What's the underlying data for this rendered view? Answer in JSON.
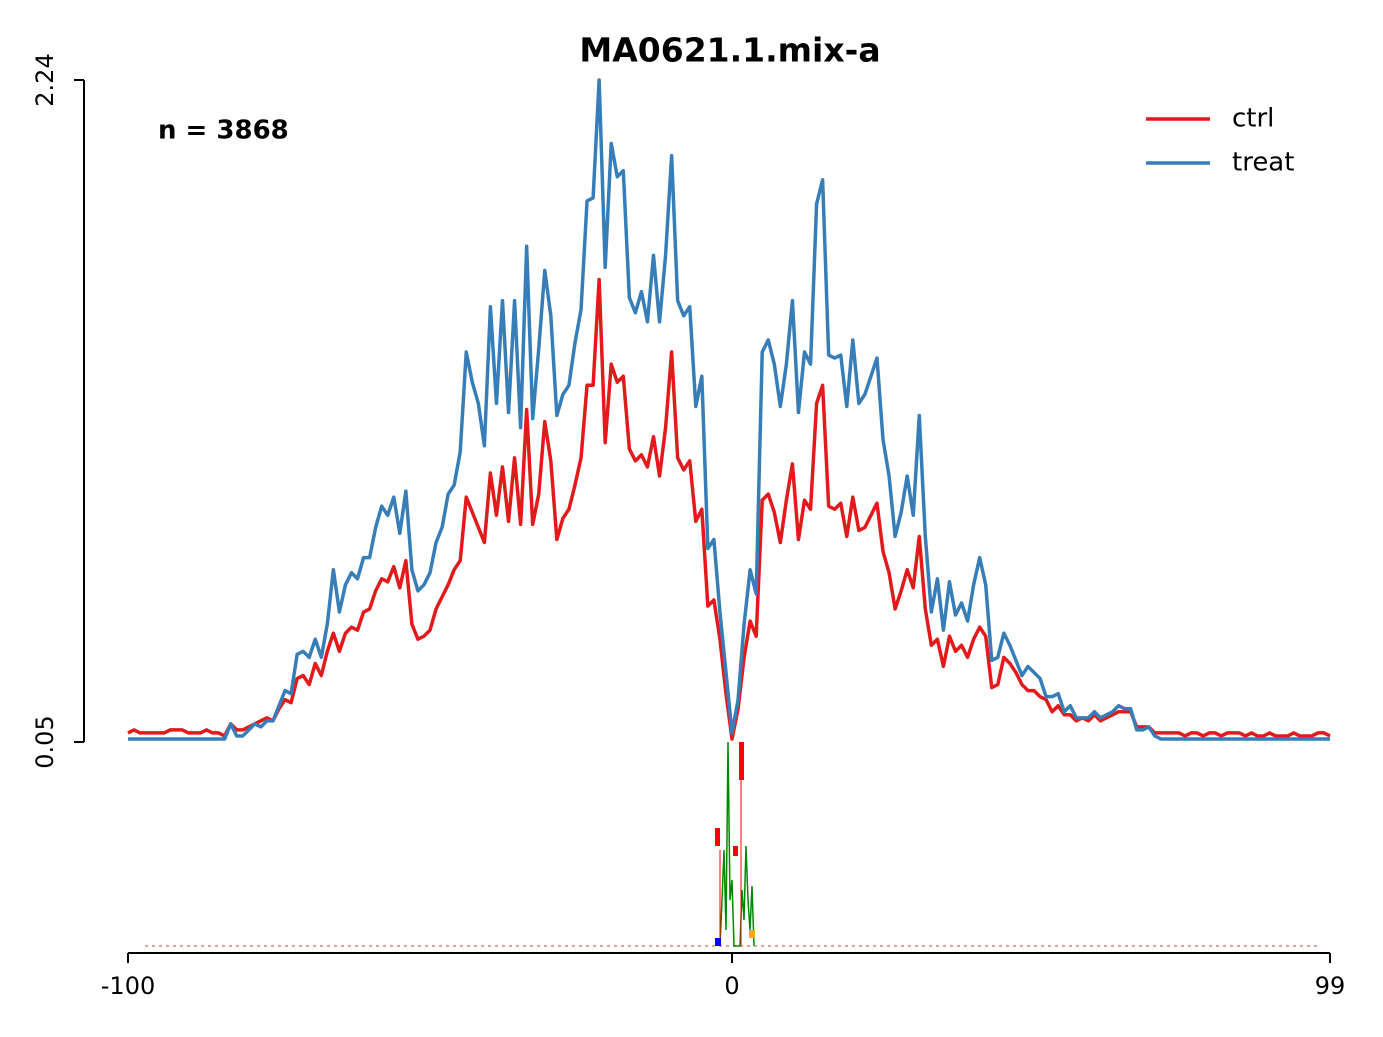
{
  "chart_data": {
    "type": "line",
    "title": "MA0621.1.mix-a",
    "annotation": "n = 3868",
    "x": [
      -100,
      -99,
      -98,
      -97,
      -96,
      -95,
      -94,
      -93,
      -92,
      -91,
      -90,
      -89,
      -88,
      -87,
      -86,
      -85,
      -84,
      -83,
      -82,
      -81,
      -80,
      -79,
      -78,
      -77,
      -76,
      -75,
      -74,
      -73,
      -72,
      -71,
      -70,
      -69,
      -68,
      -67,
      -66,
      -65,
      -64,
      -63,
      -62,
      -61,
      -60,
      -59,
      -58,
      -57,
      -56,
      -55,
      -54,
      -53,
      -52,
      -51,
      -50,
      -49,
      -48,
      -47,
      -46,
      -45,
      -44,
      -43,
      -42,
      -41,
      -40,
      -39,
      -38,
      -37,
      -36,
      -35,
      -34,
      -33,
      -32,
      -31,
      -30,
      -29,
      -28,
      -27,
      -26,
      -25,
      -24,
      -23,
      -22,
      -21,
      -20,
      -19,
      -18,
      -17,
      -16,
      -15,
      -14,
      -13,
      -12,
      -11,
      -10,
      -9,
      -8,
      -7,
      -6,
      -5,
      -4,
      -3,
      -2,
      -1,
      0,
      1,
      2,
      3,
      4,
      5,
      6,
      7,
      8,
      9,
      10,
      11,
      12,
      13,
      14,
      15,
      16,
      17,
      18,
      19,
      20,
      21,
      22,
      23,
      24,
      25,
      26,
      27,
      28,
      29,
      30,
      31,
      32,
      33,
      34,
      35,
      36,
      37,
      38,
      39,
      40,
      41,
      42,
      43,
      44,
      45,
      46,
      47,
      48,
      49,
      50,
      51,
      52,
      53,
      54,
      55,
      56,
      57,
      58,
      59,
      60,
      61,
      62,
      63,
      64,
      65,
      66,
      67,
      68,
      69,
      70,
      71,
      72,
      73,
      74,
      75,
      76,
      77,
      78,
      79,
      80,
      81,
      82,
      83,
      84,
      85,
      86,
      87,
      88,
      89,
      90,
      91,
      92,
      93,
      94,
      95,
      96,
      97,
      98,
      99
    ],
    "series": [
      {
        "name": "ctrl",
        "color": "#e31a1c",
        "values": [
          0.08,
          0.09,
          0.08,
          0.08,
          0.08,
          0.08,
          0.08,
          0.09,
          0.09,
          0.09,
          0.08,
          0.08,
          0.08,
          0.09,
          0.08,
          0.08,
          0.07,
          0.11,
          0.09,
          0.09,
          0.1,
          0.11,
          0.12,
          0.13,
          0.12,
          0.16,
          0.19,
          0.18,
          0.26,
          0.27,
          0.24,
          0.31,
          0.27,
          0.35,
          0.41,
          0.35,
          0.41,
          0.43,
          0.42,
          0.48,
          0.49,
          0.55,
          0.59,
          0.58,
          0.63,
          0.56,
          0.65,
          0.44,
          0.39,
          0.4,
          0.42,
          0.49,
          0.53,
          0.57,
          0.62,
          0.65,
          0.86,
          0.81,
          0.76,
          0.71,
          0.94,
          0.8,
          0.96,
          0.78,
          0.99,
          0.77,
          1.15,
          0.77,
          0.87,
          1.11,
          0.98,
          0.72,
          0.79,
          0.82,
          0.9,
          0.99,
          1.23,
          1.23,
          1.58,
          1.04,
          1.3,
          1.24,
          1.26,
          1.02,
          0.98,
          1.0,
          0.96,
          1.06,
          0.93,
          1.09,
          1.34,
          0.99,
          0.95,
          0.98,
          0.78,
          0.82,
          0.5,
          0.52,
          0.39,
          0.21,
          0.06,
          0.16,
          0.33,
          0.45,
          0.4,
          0.85,
          0.87,
          0.81,
          0.71,
          0.85,
          0.97,
          0.72,
          0.85,
          0.82,
          1.17,
          1.23,
          0.83,
          0.82,
          0.84,
          0.73,
          0.86,
          0.75,
          0.76,
          0.8,
          0.84,
          0.68,
          0.61,
          0.49,
          0.55,
          0.62,
          0.56,
          0.73,
          0.49,
          0.37,
          0.39,
          0.3,
          0.4,
          0.35,
          0.37,
          0.33,
          0.39,
          0.43,
          0.4,
          0.23,
          0.24,
          0.33,
          0.31,
          0.28,
          0.24,
          0.22,
          0.22,
          0.2,
          0.19,
          0.15,
          0.17,
          0.14,
          0.14,
          0.12,
          0.13,
          0.12,
          0.14,
          0.12,
          0.13,
          0.14,
          0.15,
          0.15,
          0.15,
          0.1,
          0.1,
          0.1,
          0.08,
          0.08,
          0.08,
          0.08,
          0.08,
          0.07,
          0.08,
          0.08,
          0.07,
          0.08,
          0.08,
          0.07,
          0.08,
          0.08,
          0.08,
          0.07,
          0.08,
          0.07,
          0.07,
          0.08,
          0.07,
          0.07,
          0.07,
          0.08,
          0.07,
          0.07,
          0.07,
          0.08,
          0.08,
          0.07
        ]
      },
      {
        "name": "treat",
        "color": "#377eb8",
        "values": [
          0.06,
          0.06,
          0.06,
          0.06,
          0.06,
          0.06,
          0.06,
          0.06,
          0.06,
          0.06,
          0.06,
          0.06,
          0.06,
          0.06,
          0.06,
          0.06,
          0.06,
          0.11,
          0.07,
          0.07,
          0.09,
          0.11,
          0.1,
          0.12,
          0.12,
          0.17,
          0.22,
          0.21,
          0.34,
          0.35,
          0.33,
          0.39,
          0.33,
          0.44,
          0.62,
          0.48,
          0.57,
          0.61,
          0.59,
          0.66,
          0.66,
          0.76,
          0.83,
          0.8,
          0.86,
          0.74,
          0.88,
          0.62,
          0.55,
          0.57,
          0.61,
          0.71,
          0.76,
          0.87,
          0.9,
          1.01,
          1.34,
          1.24,
          1.17,
          1.03,
          1.49,
          1.17,
          1.51,
          1.14,
          1.51,
          1.09,
          1.69,
          1.12,
          1.35,
          1.61,
          1.46,
          1.13,
          1.2,
          1.23,
          1.37,
          1.48,
          1.84,
          1.85,
          2.24,
          1.62,
          2.03,
          1.92,
          1.94,
          1.52,
          1.47,
          1.54,
          1.44,
          1.66,
          1.44,
          1.66,
          1.99,
          1.51,
          1.46,
          1.49,
          1.16,
          1.26,
          0.69,
          0.72,
          0.48,
          0.28,
          0.08,
          0.19,
          0.44,
          0.62,
          0.54,
          1.34,
          1.38,
          1.3,
          1.16,
          1.3,
          1.51,
          1.14,
          1.34,
          1.3,
          1.83,
          1.91,
          1.33,
          1.32,
          1.33,
          1.16,
          1.38,
          1.17,
          1.2,
          1.26,
          1.32,
          1.05,
          0.93,
          0.73,
          0.81,
          0.93,
          0.8,
          1.13,
          0.73,
          0.48,
          0.59,
          0.42,
          0.58,
          0.47,
          0.51,
          0.45,
          0.57,
          0.66,
          0.57,
          0.32,
          0.33,
          0.41,
          0.37,
          0.32,
          0.27,
          0.3,
          0.28,
          0.26,
          0.2,
          0.2,
          0.21,
          0.15,
          0.17,
          0.13,
          0.13,
          0.13,
          0.15,
          0.13,
          0.14,
          0.15,
          0.17,
          0.16,
          0.16,
          0.09,
          0.09,
          0.1,
          0.07,
          0.06,
          0.06,
          0.06,
          0.06,
          0.06,
          0.06,
          0.06,
          0.06,
          0.06,
          0.06,
          0.06,
          0.06,
          0.06,
          0.06,
          0.06,
          0.06,
          0.06,
          0.06,
          0.06,
          0.06,
          0.06,
          0.06,
          0.06,
          0.06,
          0.06,
          0.06,
          0.06,
          0.06,
          0.06
        ]
      }
    ],
    "xlim": [
      -100,
      99
    ],
    "xticks": [
      -100,
      0,
      99
    ],
    "ylim": [
      0.05,
      2.24
    ],
    "yticks": [
      0.05,
      2.24
    ],
    "legend": "upper right"
  }
}
